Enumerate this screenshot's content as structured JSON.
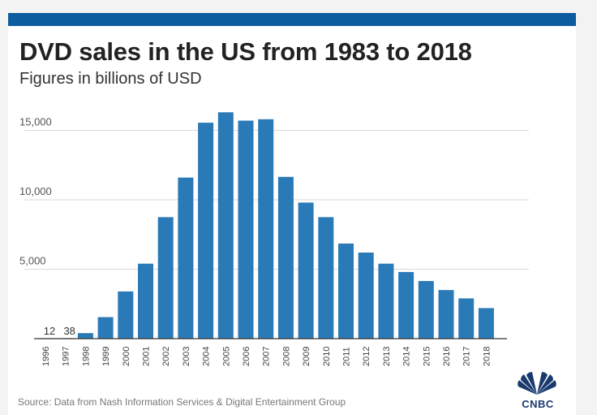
{
  "header": {
    "title": "DVD sales in the US from 1983 to 2018",
    "subtitle": "Figures in billions of USD"
  },
  "footer": {
    "source": "Source: Data from Nash Information Services & Digital Entertainment Group",
    "logo_text": "CNBC"
  },
  "colors": {
    "bar": "#2a7ab8",
    "topbar": "#0d5ca0",
    "grid": "#d9d9d9"
  },
  "chart_data": {
    "type": "bar",
    "title": "DVD sales in the US from 1983 to 2018",
    "subtitle": "Figures in billions of USD",
    "categories": [
      "1996",
      "1997",
      "1998",
      "1999",
      "2000",
      "2001",
      "2002",
      "2003",
      "2004",
      "2005",
      "2006",
      "2007",
      "2008",
      "2009",
      "2010",
      "2011",
      "2012",
      "2013",
      "2014",
      "2015",
      "2016",
      "2017",
      "2018"
    ],
    "values": [
      12,
      38,
      400,
      1550,
      3400,
      5400,
      8750,
      11600,
      15550,
      16300,
      15700,
      15800,
      11650,
      9800,
      8750,
      6850,
      6200,
      5400,
      4800,
      4150,
      3500,
      2900,
      2200
    ],
    "data_labels": [
      {
        "category": "1996",
        "text": "12"
      },
      {
        "category": "1997",
        "text": "38"
      }
    ],
    "y_ticks": [
      5000,
      10000,
      15000
    ],
    "y_tick_labels": [
      "5,000",
      "10,000",
      "15,000"
    ],
    "ylim": [
      0,
      16500
    ],
    "grid": true,
    "xlabel": "",
    "ylabel": ""
  }
}
